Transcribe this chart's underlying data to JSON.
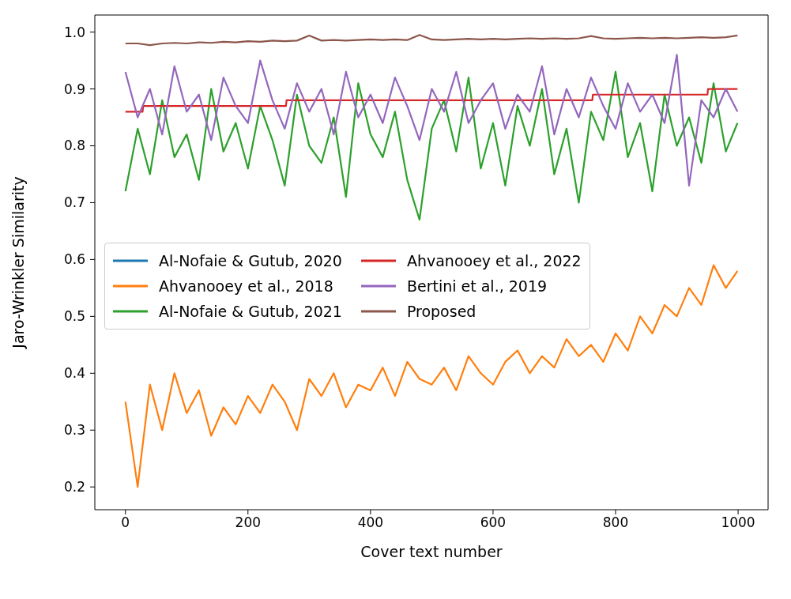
{
  "chart_data": {
    "type": "line",
    "xlabel": "Cover text number",
    "ylabel": "Jaro-Wrinkler Similarity",
    "x": [
      0,
      20,
      40,
      60,
      80,
      100,
      120,
      140,
      160,
      180,
      200,
      220,
      240,
      260,
      280,
      300,
      320,
      340,
      360,
      380,
      400,
      420,
      440,
      460,
      480,
      500,
      520,
      540,
      560,
      580,
      600,
      620,
      640,
      660,
      680,
      700,
      720,
      740,
      760,
      780,
      800,
      820,
      840,
      860,
      880,
      900,
      920,
      940,
      960,
      980,
      999
    ],
    "series": [
      {
        "name": "Al-Nofaie & Gutub, 2020",
        "color": "#1f77b4",
        "values": [
          null,
          null,
          null,
          null,
          null,
          null,
          null,
          null,
          null,
          null,
          null,
          null,
          null,
          null,
          null,
          null,
          null,
          null,
          null,
          null,
          null,
          null,
          null,
          null,
          null,
          null,
          null,
          null,
          null,
          null,
          null,
          null,
          null,
          null,
          null,
          null,
          null,
          null,
          null,
          null,
          null,
          null,
          null,
          null,
          null,
          null,
          null,
          null,
          null,
          null,
          null
        ]
      },
      {
        "name": "Ahvanooey et al., 2018",
        "color": "#ff7f0e",
        "values": [
          0.35,
          0.2,
          0.38,
          0.3,
          0.4,
          0.33,
          0.37,
          0.29,
          0.34,
          0.31,
          0.36,
          0.33,
          0.38,
          0.35,
          0.3,
          0.39,
          0.36,
          0.4,
          0.34,
          0.38,
          0.37,
          0.41,
          0.36,
          0.42,
          0.39,
          0.38,
          0.41,
          0.37,
          0.43,
          0.4,
          0.38,
          0.42,
          0.44,
          0.4,
          0.43,
          0.41,
          0.46,
          0.43,
          0.45,
          0.42,
          0.47,
          0.44,
          0.5,
          0.47,
          0.52,
          0.5,
          0.55,
          0.52,
          0.59,
          0.55,
          0.58
        ]
      },
      {
        "name": "Al-Nofaie & Gutub, 2021",
        "color": "#2ca02c",
        "values": [
          0.72,
          0.83,
          0.75,
          0.88,
          0.78,
          0.82,
          0.74,
          0.9,
          0.79,
          0.84,
          0.76,
          0.87,
          0.81,
          0.73,
          0.89,
          0.8,
          0.77,
          0.85,
          0.71,
          0.91,
          0.82,
          0.78,
          0.86,
          0.74,
          0.67,
          0.83,
          0.88,
          0.79,
          0.92,
          0.76,
          0.84,
          0.73,
          0.87,
          0.8,
          0.9,
          0.75,
          0.83,
          0.7,
          0.86,
          0.81,
          0.93,
          0.78,
          0.84,
          0.72,
          0.89,
          0.8,
          0.85,
          0.77,
          0.91,
          0.79,
          0.84
        ]
      },
      {
        "name": "Ahvanooey et al., 2022",
        "color": "#d62728",
        "x": [
          0,
          28,
          29,
          262,
          263,
          762,
          763,
          950,
          951,
          999
        ],
        "values": [
          0.86,
          0.86,
          0.87,
          0.87,
          0.88,
          0.88,
          0.89,
          0.89,
          0.9,
          0.9
        ]
      },
      {
        "name": "Bertini et al., 2019",
        "color": "#9467bd",
        "values": [
          0.93,
          0.85,
          0.9,
          0.82,
          0.94,
          0.86,
          0.89,
          0.81,
          0.92,
          0.87,
          0.84,
          0.95,
          0.88,
          0.83,
          0.91,
          0.86,
          0.9,
          0.82,
          0.93,
          0.85,
          0.89,
          0.84,
          0.92,
          0.87,
          0.81,
          0.9,
          0.86,
          0.93,
          0.84,
          0.88,
          0.91,
          0.83,
          0.89,
          0.86,
          0.94,
          0.82,
          0.9,
          0.85,
          0.92,
          0.87,
          0.83,
          0.91,
          0.86,
          0.89,
          0.84,
          0.96,
          0.73,
          0.88,
          0.85,
          0.9,
          0.86
        ]
      },
      {
        "name": "Proposed",
        "color": "#8c564b",
        "values": [
          0.98,
          0.98,
          0.977,
          0.98,
          0.981,
          0.98,
          0.982,
          0.981,
          0.983,
          0.982,
          0.984,
          0.983,
          0.985,
          0.984,
          0.985,
          0.994,
          0.985,
          0.986,
          0.985,
          0.986,
          0.987,
          0.986,
          0.987,
          0.986,
          0.995,
          0.987,
          0.986,
          0.987,
          0.988,
          0.987,
          0.988,
          0.987,
          0.988,
          0.989,
          0.988,
          0.989,
          0.988,
          0.989,
          0.993,
          0.989,
          0.988,
          0.989,
          0.99,
          0.989,
          0.99,
          0.989,
          0.99,
          0.991,
          0.99,
          0.991,
          0.994
        ]
      }
    ],
    "xlim": [
      -49.95,
      1048.95
    ],
    "xticks": [
      0,
      200,
      400,
      600,
      800,
      1000
    ],
    "ylim": [
      0.16,
      1.03
    ],
    "yticks": [
      0.2,
      0.3,
      0.4,
      0.5,
      0.6,
      0.7,
      0.8,
      0.9,
      {
        "value": 1,
        "label": "1.0"
      }
    ],
    "grid": false,
    "legend": "center left",
    "marker": "none",
    "line_style": "solid"
  }
}
